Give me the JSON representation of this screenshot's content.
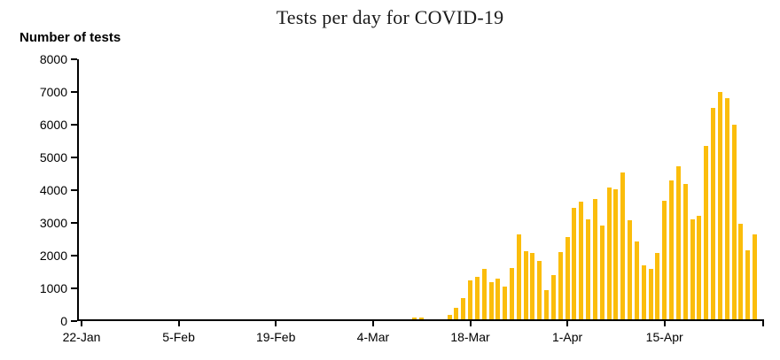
{
  "header": {
    "title": "Tests per day for COVID-19",
    "y_axis_title": "Number of tests"
  },
  "chart_data": {
    "type": "bar",
    "title": "Tests per day for COVID-19",
    "ylabel": "Number of tests",
    "xlabel": "",
    "ylim": [
      0,
      8000
    ],
    "grid": false,
    "legend": "none",
    "bar_color": "#FBBD0B",
    "axis_color": "#000000",
    "y_ticks": [
      0,
      1000,
      2000,
      3000,
      4000,
      5000,
      6000,
      7000,
      8000
    ],
    "x_ticks": [
      {
        "label": "22-Jan",
        "day": 0
      },
      {
        "label": "5-Feb",
        "day": 14
      },
      {
        "label": "19-Feb",
        "day": 28
      },
      {
        "label": "4-Mar",
        "day": 42
      },
      {
        "label": "18-Mar",
        "day": 56
      },
      {
        "label": "1-Apr",
        "day": 70
      },
      {
        "label": "15-Apr",
        "day": 84
      }
    ],
    "num_days": 98,
    "values": [
      0,
      0,
      0,
      0,
      0,
      0,
      0,
      0,
      0,
      0,
      0,
      0,
      0,
      0,
      0,
      0,
      0,
      0,
      0,
      0,
      0,
      0,
      0,
      0,
      0,
      0,
      0,
      0,
      0,
      0,
      0,
      0,
      0,
      0,
      0,
      0,
      0,
      0,
      0,
      0,
      0,
      0,
      0,
      0,
      0,
      0,
      0,
      0,
      60,
      60,
      0,
      0,
      0,
      150,
      350,
      660,
      1180,
      1300,
      1550,
      1140,
      1240,
      1010,
      1560,
      2600,
      2080,
      2030,
      1790,
      890,
      1360,
      2050,
      2520,
      3400,
      3600,
      3060,
      3690,
      2860,
      4030,
      3980,
      4500,
      3040,
      2390,
      1650,
      1530,
      2040,
      3620,
      4250,
      4680,
      4140,
      3060,
      3170,
      5290,
      6460,
      6950,
      6770,
      5960,
      2930,
      2120,
      2600
    ]
  }
}
